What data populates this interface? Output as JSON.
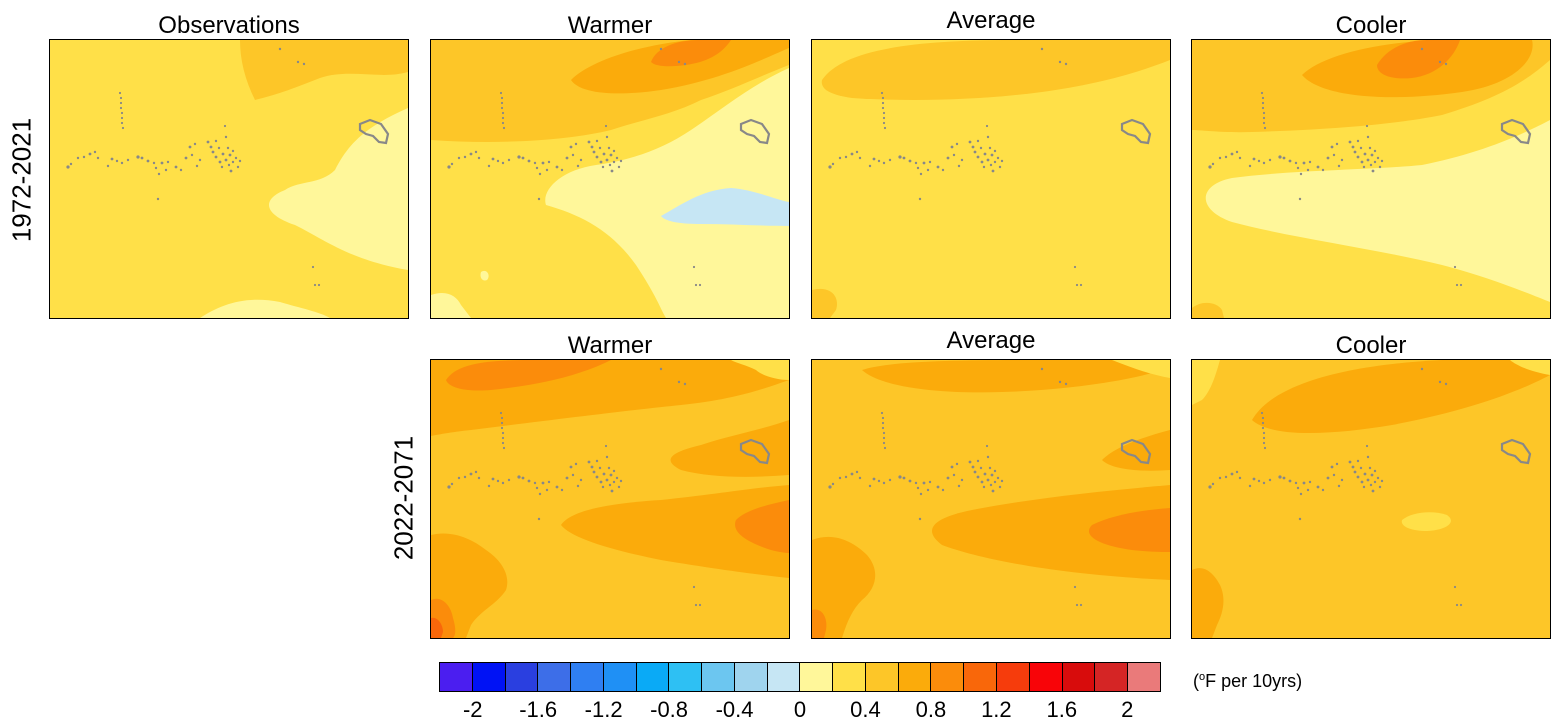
{
  "row_labels": [
    "1972-2021",
    "2022-2071"
  ],
  "row1_titles": [
    "Observations",
    "Warmer",
    "Average",
    "Cooler"
  ],
  "row2_titles": [
    "Warmer",
    "Average",
    "Cooler"
  ],
  "legend": {
    "unit_prefix": "(",
    "unit_degree": "o",
    "unit_text": "F per 10yrs)",
    "ticks": [
      "-2",
      "-1.6",
      "-1.2",
      "-0.8",
      "-0.4",
      "0",
      "0.4",
      "0.8",
      "1.2",
      "1.6",
      "2"
    ],
    "bins": [
      {
        "min": -2.2,
        "max": -2.0,
        "color": "#4b1ef0"
      },
      {
        "min": -2.0,
        "max": -1.8,
        "color": "#0012f5"
      },
      {
        "min": -1.8,
        "max": -1.6,
        "color": "#2a3fe0"
      },
      {
        "min": -1.6,
        "max": -1.4,
        "color": "#3d6ee8"
      },
      {
        "min": -1.4,
        "max": -1.2,
        "color": "#2f7ff2"
      },
      {
        "min": -1.2,
        "max": -1.0,
        "color": "#1f90f5"
      },
      {
        "min": -1.0,
        "max": -0.8,
        "color": "#0aaaf6"
      },
      {
        "min": -0.8,
        "max": -0.6,
        "color": "#2ec0f3"
      },
      {
        "min": -0.6,
        "max": -0.4,
        "color": "#6cc6f0"
      },
      {
        "min": -0.4,
        "max": -0.2,
        "color": "#9fd4ee"
      },
      {
        "min": -0.2,
        "max": 0.0,
        "color": "#c6e6f4"
      },
      {
        "min": 0.0,
        "max": 0.2,
        "color": "#fff79a"
      },
      {
        "min": 0.2,
        "max": 0.4,
        "color": "#ffe048"
      },
      {
        "min": 0.4,
        "max": 0.6,
        "color": "#fdc628"
      },
      {
        "min": 0.6,
        "max": 0.8,
        "color": "#fbab0b"
      },
      {
        "min": 0.8,
        "max": 1.0,
        "color": "#fb8c0b"
      },
      {
        "min": 1.0,
        "max": 1.2,
        "color": "#f9670a"
      },
      {
        "min": 1.2,
        "max": 1.4,
        "color": "#f63c0c"
      },
      {
        "min": 1.4,
        "max": 1.6,
        "color": "#f80408"
      },
      {
        "min": 1.6,
        "max": 1.8,
        "color": "#d80c0c"
      },
      {
        "min": 1.8,
        "max": 2.0,
        "color": "#d52525"
      },
      {
        "min": 2.0,
        "max": 2.2,
        "color": "#ea7a7a"
      }
    ]
  },
  "colors": {
    "island": "#888888",
    "panel_border": "#000000"
  }
}
